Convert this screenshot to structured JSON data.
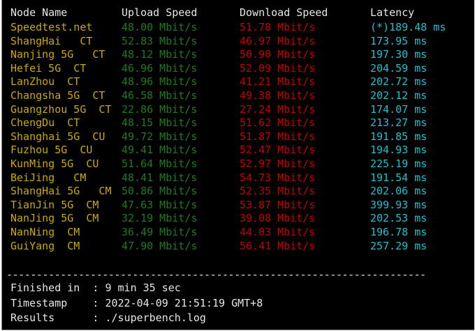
{
  "headers": {
    "node": "Node Name",
    "upload": "Upload Speed",
    "download": "Download Speed",
    "latency": "Latency"
  },
  "rows": [
    {
      "node": "Speedtest.net",
      "upload": "48.00 Mbit/s",
      "download": "51.78 Mbit/s",
      "latency": "(*)189.48 ms"
    },
    {
      "node": "ShangHai   CT",
      "upload": "52.83 Mbit/s",
      "download": "46.97 Mbit/s",
      "latency": "173.95 ms"
    },
    {
      "node": "Nanjing 5G   CT",
      "upload": "48.12 Mbit/s",
      "download": "50.90 Mbit/s",
      "latency": "197.30 ms"
    },
    {
      "node": "Hefei 5G  CT",
      "upload": "46.96 Mbit/s",
      "download": "52.09 Mbit/s",
      "latency": "204.59 ms"
    },
    {
      "node": "LanZhou  CT",
      "upload": "48.96 Mbit/s",
      "download": "41.21 Mbit/s",
      "latency": "202.72 ms"
    },
    {
      "node": "Changsha 5G  CT",
      "upload": "46.58 Mbit/s",
      "download": "49.38 Mbit/s",
      "latency": "202.12 ms"
    },
    {
      "node": "Guangzhou 5G  CT",
      "upload": "22.86 Mbit/s",
      "download": "27.24 Mbit/s",
      "latency": "174.07 ms"
    },
    {
      "node": "ChengDu  CT",
      "upload": "48.15 Mbit/s",
      "download": "51.62 Mbit/s",
      "latency": "213.27 ms"
    },
    {
      "node": "Shanghai 5G  CU",
      "upload": "49.72 Mbit/s",
      "download": "51.87 Mbit/s",
      "latency": "191.85 ms"
    },
    {
      "node": "Fuzhou 5G  CU",
      "upload": "49.41 Mbit/s",
      "download": "52.47 Mbit/s",
      "latency": "194.93 ms"
    },
    {
      "node": "KunMing 5G  CU",
      "upload": "51.64 Mbit/s",
      "download": "52.97 Mbit/s",
      "latency": "225.19 ms"
    },
    {
      "node": "BeiJing   CM",
      "upload": "48.41 Mbit/s",
      "download": "54.73 Mbit/s",
      "latency": "191.54 ms"
    },
    {
      "node": "ShangHai 5G   CM",
      "upload": "50.86 Mbit/s",
      "download": "52.35 Mbit/s",
      "latency": "202.06 ms"
    },
    {
      "node": "TianJin 5G  CM",
      "upload": "47.63 Mbit/s",
      "download": "53.87 Mbit/s",
      "latency": "399.93 ms"
    },
    {
      "node": "NanJing 5G  CM",
      "upload": "32.19 Mbit/s",
      "download": "39.08 Mbit/s",
      "latency": "202.53 ms"
    },
    {
      "node": "NanNing  CM",
      "upload": "36.49 Mbit/s",
      "download": "44.03 Mbit/s",
      "latency": "196.78 ms"
    },
    {
      "node": "GuiYang  CM",
      "upload": "47.90 Mbit/s",
      "download": "56.41 Mbit/s",
      "latency": "257.29 ms"
    }
  ],
  "separator": "----------------------------------------------------------------------",
  "footer": {
    "finished": "Finished in  : 9 min 35 sec",
    "timestamp": "Timestamp    : 2022-04-09 21:51:19 GMT+8",
    "results": "Results      : ./superbench.log"
  },
  "colors": {
    "name": "#c9a900",
    "upload": "#1d7a1d",
    "download": "#c40000",
    "latency": "#1fc0cf",
    "text": "#e6e6e6",
    "background": "#000000"
  }
}
